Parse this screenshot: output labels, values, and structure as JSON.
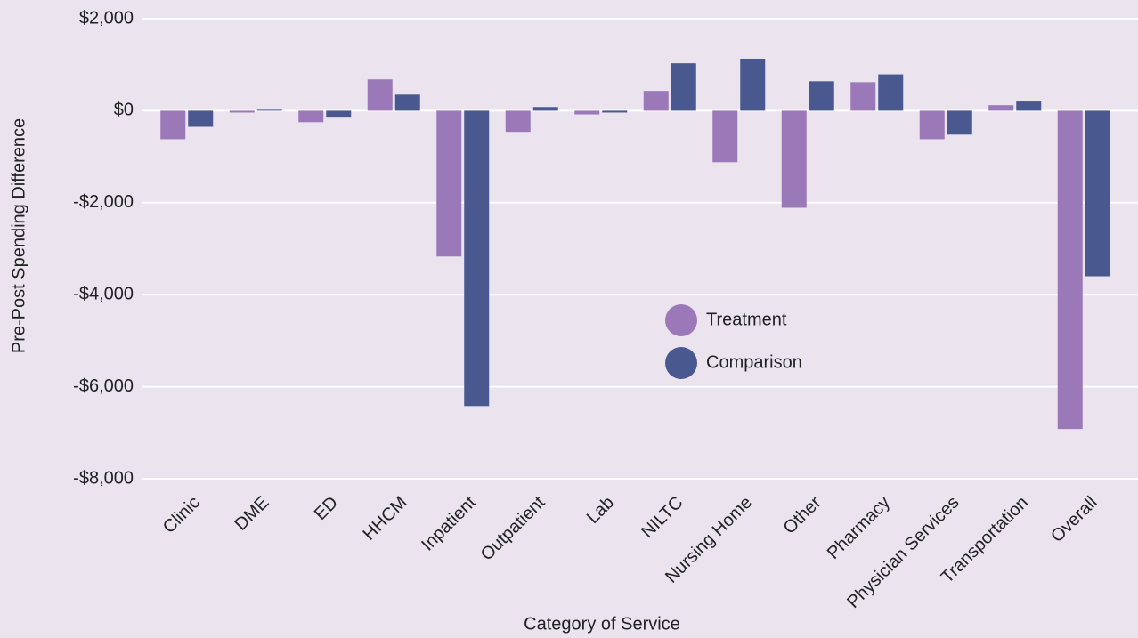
{
  "chart_data": {
    "type": "bar",
    "xlabel": "Category of Service",
    "ylabel": "Pre-Post Spending Difference",
    "categories": [
      "Clinic",
      "DME",
      "ED",
      "HHCM",
      "Inpatient",
      "Outpatient",
      "Lab",
      "NILTC",
      "Nursing Home",
      "Other",
      "Pharmacy",
      "Physician Services",
      "Transportation",
      "Overall"
    ],
    "series": [
      {
        "name": "Treatment",
        "color": "#9b78b8",
        "values": [
          -620,
          -40,
          -250,
          680,
          -3170,
          -460,
          -80,
          430,
          -1120,
          -2110,
          620,
          -620,
          120,
          -6920
        ]
      },
      {
        "name": "Comparison",
        "color": "#4a5890",
        "values": [
          -350,
          20,
          -150,
          350,
          -6420,
          80,
          -40,
          1030,
          1130,
          640,
          790,
          -520,
          200,
          -3600
        ]
      }
    ],
    "ylim": [
      -8000,
      2000
    ],
    "yticks": [
      {
        "value": 2000,
        "label": "$2,000"
      },
      {
        "value": 0,
        "label": "$0"
      },
      {
        "value": -2000,
        "label": "-$2,000"
      },
      {
        "value": -4000,
        "label": "-$4,000"
      },
      {
        "value": -6000,
        "label": "-$6,000"
      },
      {
        "value": -8000,
        "label": "-$8,000"
      }
    ],
    "grid": true
  }
}
